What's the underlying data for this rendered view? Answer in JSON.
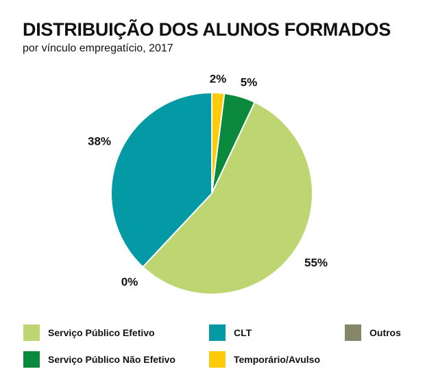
{
  "title": "DISTRIBUIÇÃO DOS ALUNOS FORMADOS",
  "subtitle": "por vínculo empregatício, 2017",
  "chart_data": {
    "type": "pie",
    "title": "DISTRIBUIÇÃO DOS ALUNOS FORMADOS",
    "subtitle": "por vínculo empregatício, 2017",
    "start_angle_deg": 0,
    "direction": "clockwise",
    "slices": [
      {
        "name": "Temporário/Avulso",
        "value": 2,
        "label": "2%",
        "color": "#FDCB0A"
      },
      {
        "name": "Serviço Público Não Efetivo",
        "value": 5,
        "label": "5%",
        "color": "#0B8A3E"
      },
      {
        "name": "Serviço Público Efetivo",
        "value": 55,
        "label": "55%",
        "color": "#BDD672"
      },
      {
        "name": "Outros",
        "value": 0,
        "label": "0%",
        "color": "#868669"
      },
      {
        "name": "CLT",
        "value": 38,
        "label": "38%",
        "color": "#039AA6"
      }
    ],
    "legend_order": [
      "Serviço Público Efetivo",
      "CLT",
      "Outros",
      "Serviço Público Não Efetivo",
      "Temporário/Avulso"
    ],
    "legend_position": "bottom"
  }
}
